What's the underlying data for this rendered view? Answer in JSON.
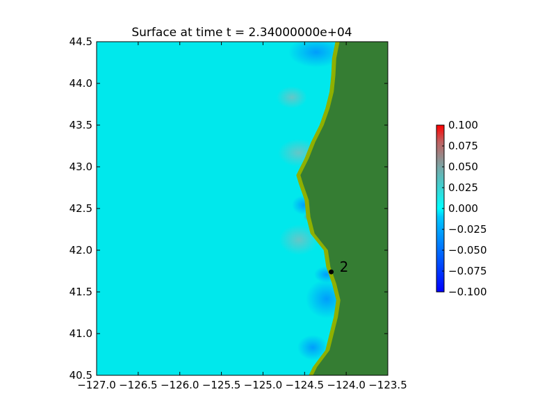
{
  "chart_data": {
    "type": "heatmap",
    "title": "Surface at time t = 2.34000000e+04",
    "xlabel": "",
    "ylabel": "",
    "xlim": [
      -127.0,
      -123.5
    ],
    "ylim": [
      40.5,
      44.5
    ],
    "x_ticks": [
      -127.0,
      -126.5,
      -126.0,
      -125.5,
      -125.0,
      -124.5,
      -124.0,
      -123.5
    ],
    "x_tick_labels": [
      "−127.0",
      "−126.5",
      "−126.0",
      "−125.5",
      "−125.0",
      "−124.5",
      "−124.0",
      "−123.5"
    ],
    "y_ticks": [
      40.5,
      41.0,
      41.5,
      42.0,
      42.5,
      43.0,
      43.5,
      44.0,
      44.5
    ],
    "y_tick_labels": [
      "40.5",
      "41.0",
      "41.5",
      "42.0",
      "42.5",
      "43.0",
      "43.5",
      "44.0",
      "44.5"
    ],
    "colorbar": {
      "min": -0.1,
      "max": 0.1,
      "ticks": [
        0.1,
        0.075,
        0.05,
        0.025,
        0.0,
        -0.025,
        -0.05,
        -0.075,
        -0.1
      ],
      "tick_labels": [
        "0.100",
        "0.075",
        "0.050",
        "0.025",
        "0.000",
        "−0.025",
        "−0.050",
        "−0.075",
        "−0.100"
      ],
      "colors": [
        "#0000ff",
        "#00ffff",
        "#ff0000"
      ]
    },
    "field_base_color": "#00e8ec",
    "land_color": "#357d33",
    "shore_color": "#8fb000",
    "coastline": [
      [
        44.5,
        -124.08
      ],
      [
        44.3,
        -124.12
      ],
      [
        44.1,
        -124.13
      ],
      [
        43.9,
        -124.15
      ],
      [
        43.7,
        -124.2
      ],
      [
        43.5,
        -124.27
      ],
      [
        43.3,
        -124.37
      ],
      [
        43.1,
        -124.45
      ],
      [
        42.9,
        -124.55
      ],
      [
        42.8,
        -124.52
      ],
      [
        42.6,
        -124.45
      ],
      [
        42.4,
        -124.43
      ],
      [
        42.2,
        -124.38
      ],
      [
        42.0,
        -124.22
      ],
      [
        41.8,
        -124.19
      ],
      [
        41.6,
        -124.12
      ],
      [
        41.4,
        -124.07
      ],
      [
        41.2,
        -124.1
      ],
      [
        41.0,
        -124.15
      ],
      [
        40.8,
        -124.2
      ],
      [
        40.6,
        -124.35
      ],
      [
        40.5,
        -124.4
      ]
    ],
    "gauges": [
      {
        "label": "2",
        "lon": -124.18,
        "lat": 41.74
      }
    ]
  }
}
